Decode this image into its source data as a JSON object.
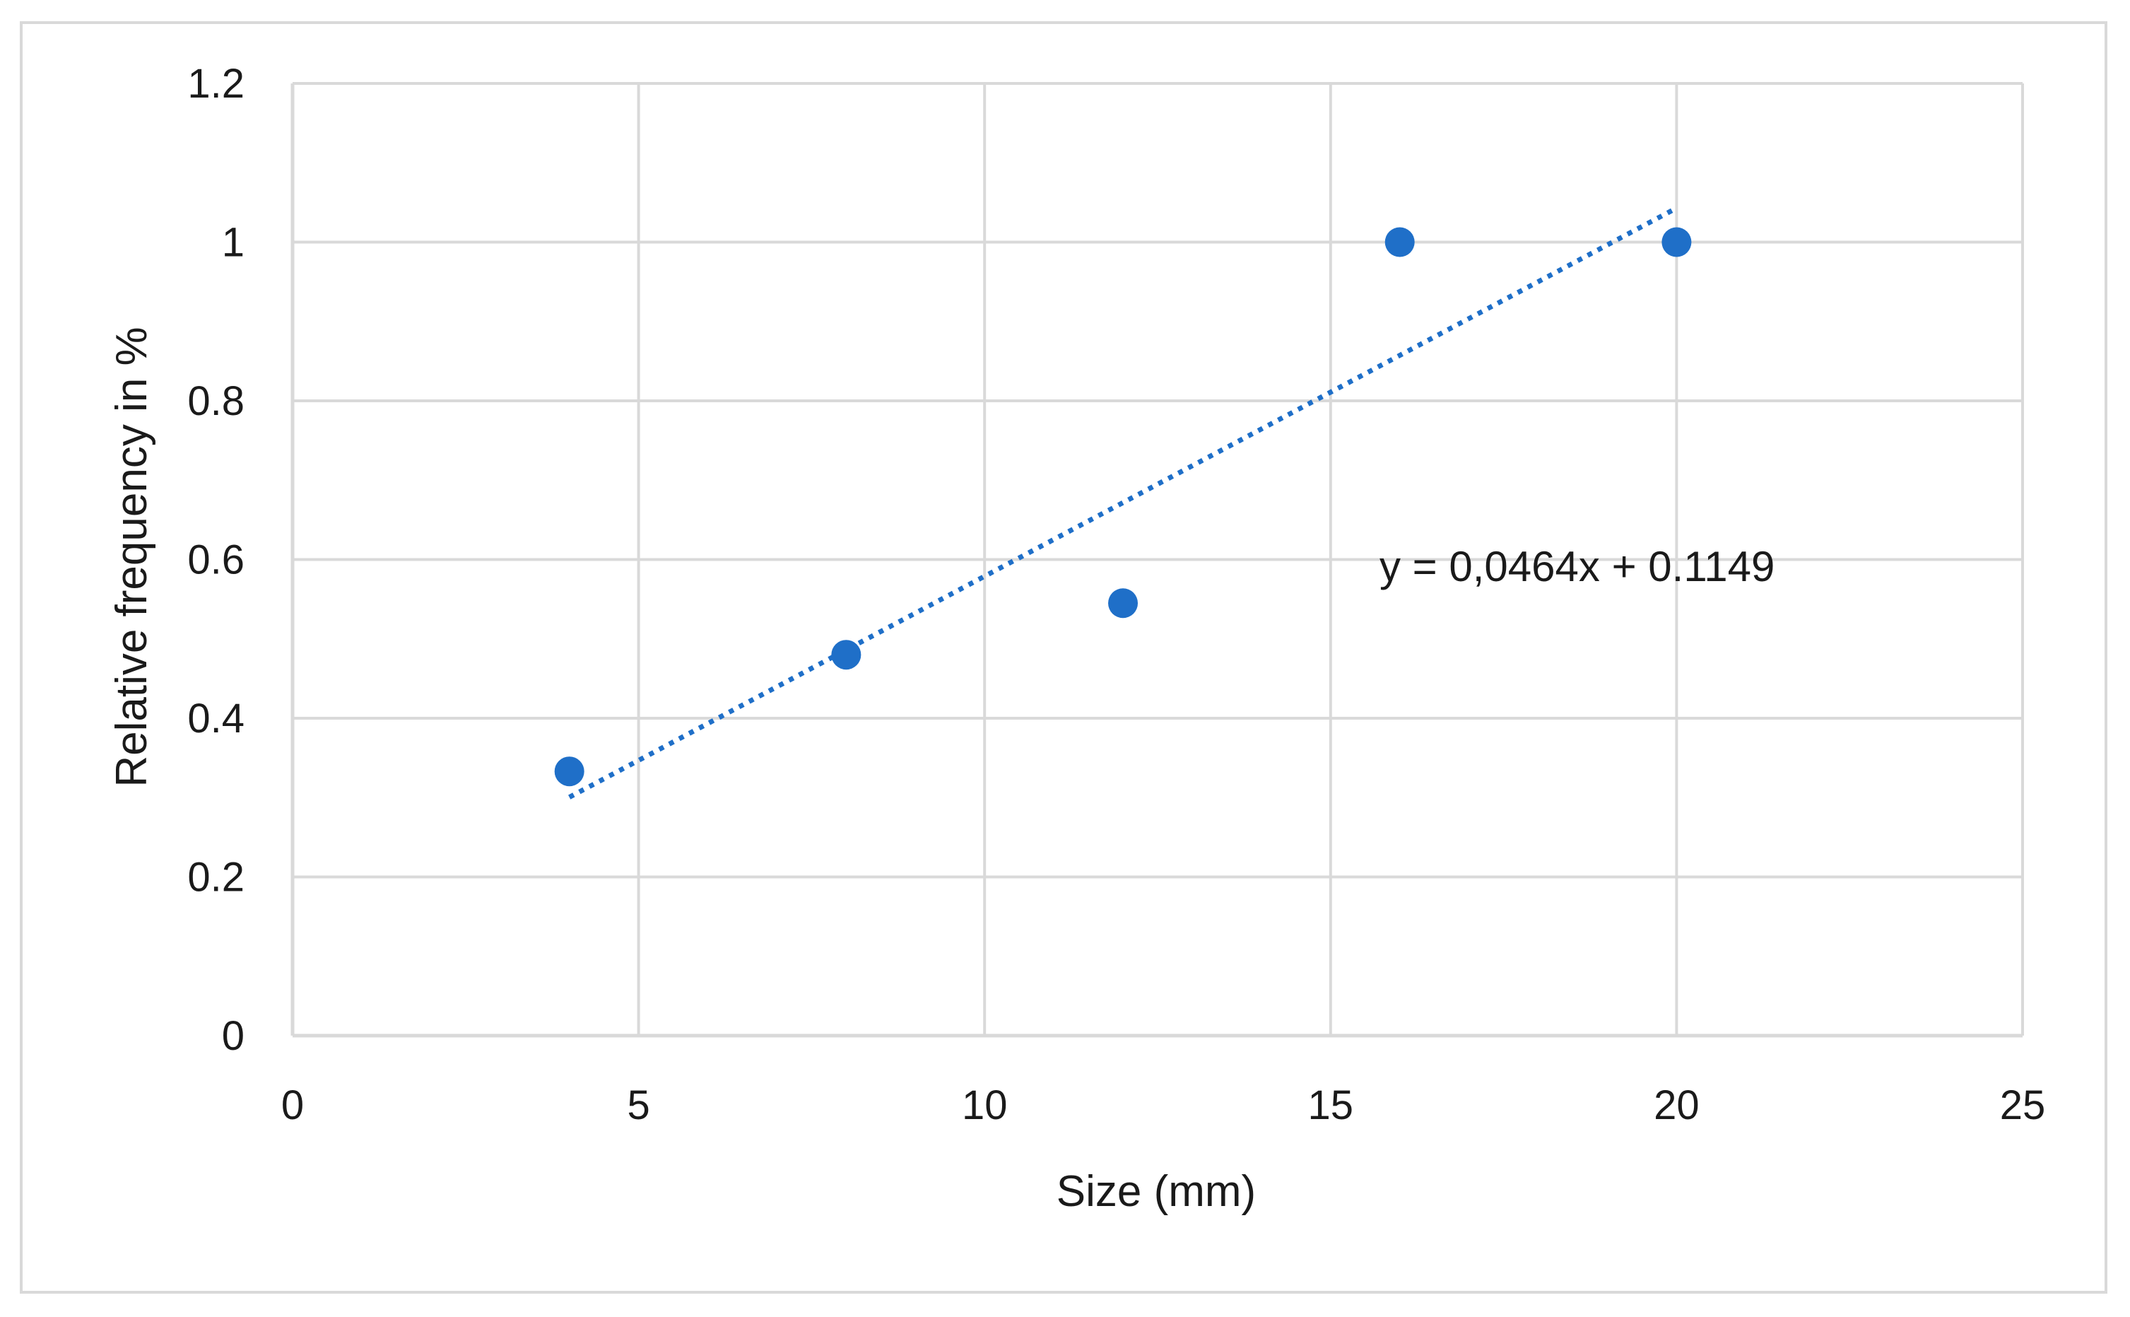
{
  "chart_data": {
    "type": "scatter",
    "title": "",
    "xlabel": "Size (mm)",
    "ylabel": "Relative frequency in %",
    "xlim": [
      0,
      25
    ],
    "ylim": [
      0,
      1.2
    ],
    "xticks": [
      "0",
      "5",
      "10",
      "15",
      "20",
      "25"
    ],
    "yticks": [
      "0",
      "0.2",
      "0.4",
      "0.6",
      "0.8",
      "1",
      "1.2"
    ],
    "grid": true,
    "legend": "none",
    "series": [
      {
        "x": [
          4,
          8,
          12,
          16,
          20
        ],
        "y": [
          0.333,
          0.48,
          0.545,
          1.0,
          1.0
        ],
        "color": "#1f6fc8"
      }
    ],
    "trendline": {
      "type": "linear",
      "slope": 0.0464,
      "intercept": 0.1149,
      "x_range": [
        4,
        20
      ],
      "style": "dotted",
      "color": "#1f6fc8",
      "equation_label": "y = 0,0464x + 0.1149"
    }
  }
}
